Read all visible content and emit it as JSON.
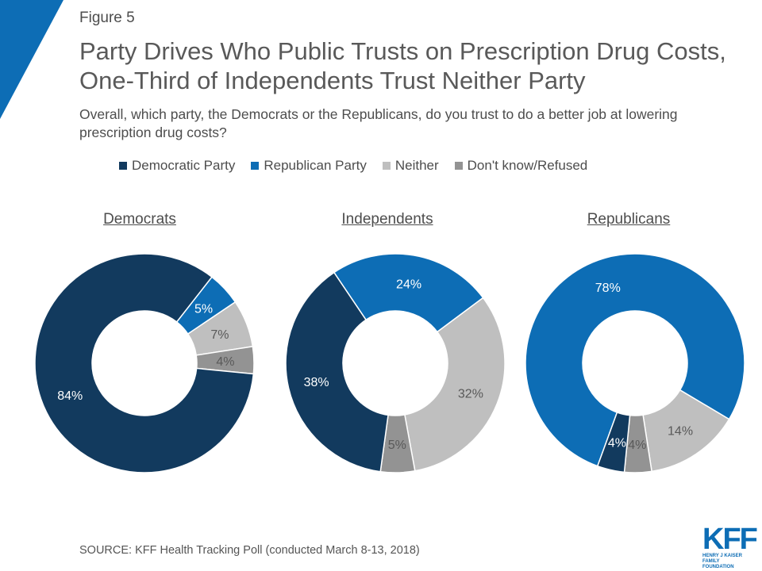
{
  "header": {
    "figure_label": "Figure 5",
    "title": "Party Drives Who Public Trusts on Prescription Drug Costs, One-Third of Independents Trust Neither Party",
    "subtitle": "Overall, which party, the Democrats or the Republicans, do you trust to do a better job at lowering prescription drug costs?"
  },
  "colors": {
    "accent_corner": "#0d6db5",
    "democratic": "#123a5e",
    "republican": "#0d6db5",
    "neither": "#bfbfbf",
    "dont_know": "#939393",
    "label_light": "#ffffff",
    "label_dark": "#595959"
  },
  "chart_data": {
    "type": "pie",
    "style": "donut",
    "legend": [
      "Democratic Party",
      "Republican Party",
      "Neither",
      "Don't know/Refused"
    ],
    "legend_placement": "top",
    "charts": [
      {
        "title": "Democrats",
        "values": [
          84,
          5,
          7,
          4
        ],
        "labels": [
          "84%",
          "5%",
          "7%",
          "4%"
        ]
      },
      {
        "title": "Independents",
        "values": [
          38,
          24,
          32,
          5
        ],
        "labels": [
          "38%",
          "24%",
          "32%",
          "5%"
        ]
      },
      {
        "title": "Republicans",
        "values": [
          4,
          78,
          14,
          4
        ],
        "labels": [
          "4%",
          "78%",
          "14%",
          "4%"
        ]
      }
    ]
  },
  "footer": {
    "source": "SOURCE: KFF Health Tracking Poll (conducted March 8-13, 2018)",
    "logo_text": "KFF",
    "logo_subtext_1": "HENRY J KAISER",
    "logo_subtext_2": "FAMILY FOUNDATION"
  }
}
